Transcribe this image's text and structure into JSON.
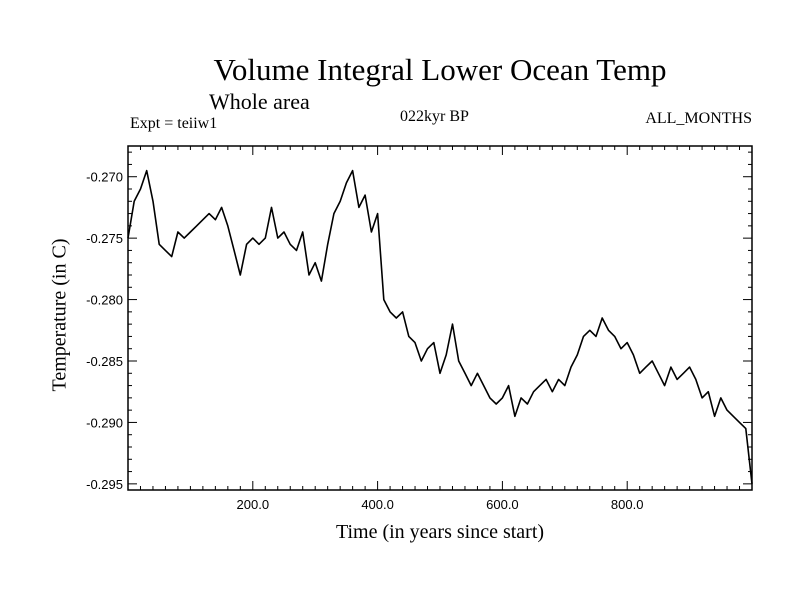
{
  "chart_data": {
    "type": "line",
    "title": "Volume Integral Lower Ocean Temp",
    "subtitle": "Whole area",
    "annotations": {
      "left": "Expt = teiiw1",
      "center": "022kyr BP",
      "right": "ALL_MONTHS"
    },
    "xlabel": "Time (in years since start)",
    "ylabel": "Temperature (in C)",
    "xlim": [
      0,
      1000
    ],
    "ylim": [
      -0.2955,
      -0.2675
    ],
    "x_ticks": [
      200,
      400,
      600,
      800
    ],
    "x_tick_labels": [
      "200.0",
      "400.0",
      "600.0",
      "800.0"
    ],
    "y_ticks": [
      -0.27,
      -0.275,
      -0.28,
      -0.285,
      -0.29,
      -0.295
    ],
    "y_tick_labels": [
      "-0.270",
      "-0.275",
      "-0.280",
      "-0.285",
      "-0.290",
      "-0.295"
    ],
    "grid": false,
    "series": [
      {
        "color": "#000000",
        "x": [
          0,
          10,
          20,
          30,
          40,
          50,
          60,
          70,
          80,
          90,
          100,
          110,
          120,
          130,
          140,
          150,
          160,
          170,
          180,
          190,
          200,
          210,
          220,
          230,
          240,
          250,
          260,
          270,
          280,
          290,
          300,
          310,
          320,
          330,
          340,
          350,
          360,
          370,
          380,
          390,
          400,
          410,
          420,
          430,
          440,
          450,
          460,
          470,
          480,
          490,
          500,
          510,
          520,
          530,
          540,
          550,
          560,
          570,
          580,
          590,
          600,
          610,
          620,
          630,
          640,
          650,
          660,
          670,
          680,
          690,
          700,
          710,
          720,
          730,
          740,
          750,
          760,
          770,
          780,
          790,
          800,
          810,
          820,
          830,
          840,
          850,
          860,
          870,
          880,
          890,
          900,
          910,
          920,
          930,
          940,
          950,
          960,
          970,
          980,
          990,
          1000
        ],
        "y": [
          -0.275,
          -0.272,
          -0.271,
          -0.2695,
          -0.272,
          -0.2755,
          -0.276,
          -0.2765,
          -0.2745,
          -0.275,
          -0.2745,
          -0.274,
          -0.2735,
          -0.273,
          -0.2735,
          -0.2725,
          -0.274,
          -0.276,
          -0.278,
          -0.2755,
          -0.275,
          -0.2755,
          -0.275,
          -0.2725,
          -0.275,
          -0.2745,
          -0.2755,
          -0.276,
          -0.2745,
          -0.278,
          -0.277,
          -0.2785,
          -0.2755,
          -0.273,
          -0.272,
          -0.2705,
          -0.2695,
          -0.2725,
          -0.2715,
          -0.2745,
          -0.273,
          -0.28,
          -0.281,
          -0.2815,
          -0.281,
          -0.283,
          -0.2835,
          -0.285,
          -0.284,
          -0.2835,
          -0.286,
          -0.2845,
          -0.282,
          -0.285,
          -0.286,
          -0.287,
          -0.286,
          -0.287,
          -0.288,
          -0.2885,
          -0.288,
          -0.287,
          -0.2895,
          -0.288,
          -0.2885,
          -0.2875,
          -0.287,
          -0.2865,
          -0.2875,
          -0.2865,
          -0.287,
          -0.2855,
          -0.2845,
          -0.283,
          -0.2825,
          -0.283,
          -0.2815,
          -0.2825,
          -0.283,
          -0.284,
          -0.2835,
          -0.2845,
          -0.286,
          -0.2855,
          -0.285,
          -0.286,
          -0.287,
          -0.2855,
          -0.2865,
          -0.286,
          -0.2855,
          -0.2865,
          -0.288,
          -0.2875,
          -0.2895,
          -0.288,
          -0.289,
          -0.2895,
          -0.29,
          -0.2905,
          -0.295
        ]
      }
    ]
  }
}
